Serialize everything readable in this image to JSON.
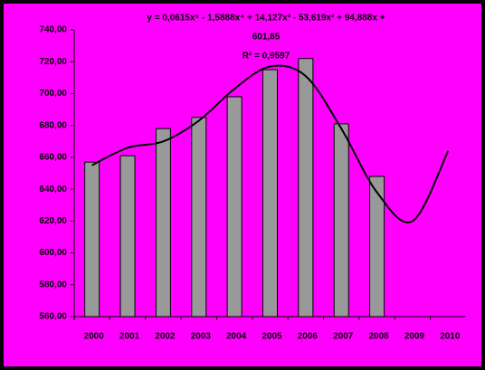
{
  "chart_data": {
    "type": "bar",
    "title_lines": [
      "y = 0,0615x⁵ - 1,5888x⁴ + 14,127x³ - 53,619x² + 94,888x +",
      "601,85",
      "R² = 0,9597"
    ],
    "categories": [
      "2000",
      "2001",
      "2002",
      "2003",
      "2004",
      "2005",
      "2006",
      "2007",
      "2008",
      "2009",
      "2010"
    ],
    "series": [
      {
        "type": "bar",
        "color": "#999999",
        "values": [
          657,
          661,
          678,
          685,
          698,
          715,
          722,
          681,
          648,
          null,
          null
        ]
      },
      {
        "type": "line",
        "color": "#000000",
        "values": [
          655,
          666,
          670,
          683,
          703,
          717,
          711,
          678,
          638,
          620,
          664
        ]
      }
    ],
    "ylim": [
      560,
      740
    ],
    "yticks": [
      {
        "value": 560,
        "label": "560,00"
      },
      {
        "value": 580,
        "label": "580,00"
      },
      {
        "value": 600,
        "label": "600,00"
      },
      {
        "value": 620,
        "label": "620,00"
      },
      {
        "value": 640,
        "label": "640,00"
      },
      {
        "value": 660,
        "label": "660,00"
      },
      {
        "value": 680,
        "label": "680,00"
      },
      {
        "value": 700,
        "label": "700,00"
      },
      {
        "value": 720,
        "label": "720,00"
      },
      {
        "value": 740,
        "label": "740,00"
      }
    ],
    "background": "#ff00ff"
  }
}
